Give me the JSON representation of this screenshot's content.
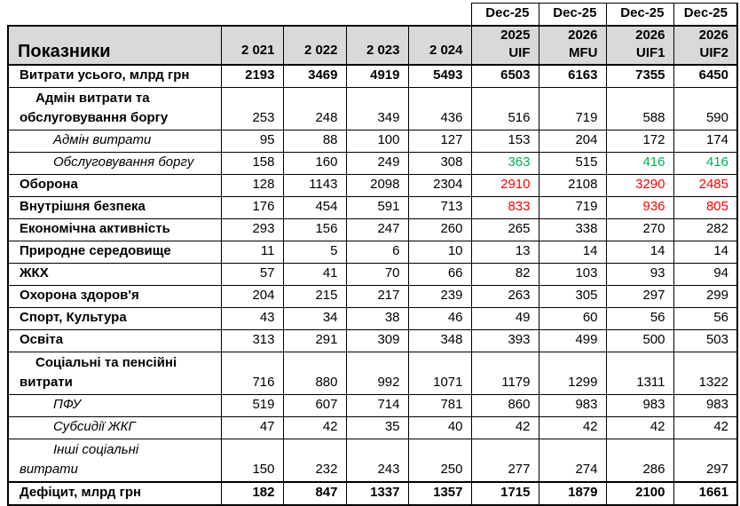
{
  "table": {
    "corner_label": "Показники",
    "dec_header": [
      "Dec-25",
      "Dec-25",
      "Dec-25",
      "Dec-25"
    ],
    "year_headers": [
      "2 021",
      "2 022",
      "2 023",
      "2 024"
    ],
    "scenario_headers": [
      {
        "year": "2025",
        "scenario": "UIF"
      },
      {
        "year": "2026",
        "scenario": "MFU"
      },
      {
        "year": "2026",
        "scenario": "UIF1"
      },
      {
        "year": "2026",
        "scenario": "UIF2"
      }
    ],
    "rows": [
      {
        "label": "Витрати усього, млрд грн",
        "style": "total",
        "values": [
          "2193",
          "3469",
          "4919",
          "5493",
          "6503",
          "6163",
          "7355",
          "6450"
        ],
        "value_colors": [
          null,
          null,
          null,
          null,
          null,
          null,
          null,
          null
        ]
      },
      {
        "label": "Адмін витрати та\nобслуговування боргу",
        "style": "group",
        "values": [
          "253",
          "248",
          "349",
          "436",
          "516",
          "719",
          "588",
          "590"
        ],
        "value_colors": [
          null,
          null,
          null,
          null,
          null,
          null,
          null,
          null
        ]
      },
      {
        "label": "Адмін витрати",
        "style": "sub",
        "values": [
          "95",
          "88",
          "100",
          "127",
          "153",
          "204",
          "172",
          "174"
        ],
        "value_colors": [
          null,
          null,
          null,
          null,
          null,
          null,
          null,
          null
        ]
      },
      {
        "label": "Обслуговування боргу",
        "style": "sub",
        "values": [
          "158",
          "160",
          "249",
          "308",
          "363",
          "515",
          "416",
          "416"
        ],
        "value_colors": [
          null,
          null,
          null,
          null,
          "positive",
          null,
          "positive",
          "positive"
        ]
      },
      {
        "label": "Оборона",
        "style": "cat",
        "values": [
          "128",
          "1143",
          "2098",
          "2304",
          "2910",
          "2108",
          "3290",
          "2485"
        ],
        "value_colors": [
          null,
          null,
          null,
          null,
          "negative",
          null,
          "negative",
          "negative"
        ]
      },
      {
        "label": "Внутрішня безпека",
        "style": "cat",
        "values": [
          "176",
          "454",
          "591",
          "713",
          "833",
          "719",
          "936",
          "805"
        ],
        "value_colors": [
          null,
          null,
          null,
          null,
          "negative",
          null,
          "negative",
          "negative"
        ]
      },
      {
        "label": "Економічна активність",
        "style": "cat",
        "values": [
          "293",
          "156",
          "247",
          "260",
          "265",
          "338",
          "270",
          "282"
        ],
        "value_colors": [
          null,
          null,
          null,
          null,
          null,
          null,
          null,
          null
        ]
      },
      {
        "label": "Природне середовище",
        "style": "cat",
        "values": [
          "11",
          "5",
          "6",
          "10",
          "13",
          "14",
          "14",
          "14"
        ],
        "value_colors": [
          null,
          null,
          null,
          null,
          null,
          null,
          null,
          null
        ]
      },
      {
        "label": "ЖКХ",
        "style": "cat",
        "values": [
          "57",
          "41",
          "70",
          "66",
          "82",
          "103",
          "93",
          "94"
        ],
        "value_colors": [
          null,
          null,
          null,
          null,
          null,
          null,
          null,
          null
        ]
      },
      {
        "label": "Охорона здоров'я",
        "style": "cat",
        "values": [
          "204",
          "215",
          "217",
          "239",
          "263",
          "305",
          "297",
          "299"
        ],
        "value_colors": [
          null,
          null,
          null,
          null,
          null,
          null,
          null,
          null
        ]
      },
      {
        "label": "Спорт, Культура",
        "style": "cat",
        "values": [
          "43",
          "34",
          "38",
          "46",
          "49",
          "60",
          "56",
          "56"
        ],
        "value_colors": [
          null,
          null,
          null,
          null,
          null,
          null,
          null,
          null
        ]
      },
      {
        "label": "Освіта",
        "style": "cat",
        "values": [
          "313",
          "291",
          "309",
          "348",
          "393",
          "499",
          "500",
          "503"
        ],
        "value_colors": [
          null,
          null,
          null,
          null,
          null,
          null,
          null,
          null
        ]
      },
      {
        "label": "Соціальні та пенсійні\nвитрати",
        "style": "group",
        "values": [
          "716",
          "880",
          "992",
          "1071",
          "1179",
          "1299",
          "1311",
          "1322"
        ],
        "value_colors": [
          null,
          null,
          null,
          null,
          null,
          null,
          null,
          null
        ]
      },
      {
        "label": "ПФУ",
        "style": "sub",
        "values": [
          "519",
          "607",
          "714",
          "781",
          "860",
          "983",
          "983",
          "983"
        ],
        "value_colors": [
          null,
          null,
          null,
          null,
          null,
          null,
          null,
          null
        ]
      },
      {
        "label": "Субсидії ЖКГ",
        "style": "sub",
        "values": [
          "47",
          "42",
          "35",
          "40",
          "42",
          "42",
          "42",
          "42"
        ],
        "value_colors": [
          null,
          null,
          null,
          null,
          null,
          null,
          null,
          null
        ]
      },
      {
        "label": "Інші соціальні\nвитрати",
        "style": "sub-wrap",
        "values": [
          "150",
          "232",
          "243",
          "250",
          "277",
          "274",
          "286",
          "297"
        ],
        "value_colors": [
          null,
          null,
          null,
          null,
          null,
          null,
          null,
          null
        ]
      },
      {
        "label": "Дефіцит, млрд грн",
        "style": "total",
        "values": [
          "182",
          "847",
          "1337",
          "1357",
          "1715",
          "1879",
          "2100",
          "1661"
        ],
        "value_colors": [
          null,
          null,
          null,
          null,
          null,
          null,
          null,
          null
        ]
      }
    ]
  },
  "colors": {
    "header_bg": "#d9d9d9",
    "border": "#000000",
    "text": "#000000",
    "negative_value": "#ff0000",
    "positive_value": "#00b050",
    "background": "#ffffff"
  }
}
